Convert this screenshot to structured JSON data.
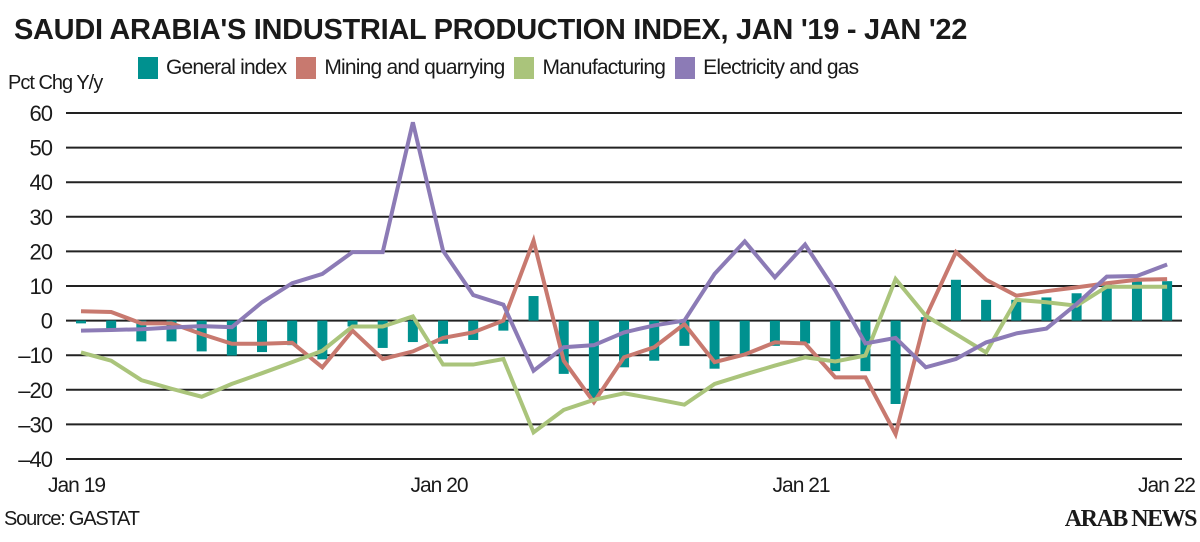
{
  "chart_data": {
    "type": "bar+line",
    "title": "SAUDI ARABIA'S INDUSTRIAL PRODUCTION INDEX, JAN '19 - JAN '22",
    "ylabel": "Pct Chg Y/y",
    "xlabel": "",
    "ylim": [
      -40,
      60
    ],
    "yticks": [
      60,
      50,
      40,
      30,
      20,
      10,
      0,
      -10,
      -20,
      -30,
      -40
    ],
    "ytick_labels": [
      "60",
      "50",
      "40",
      "30",
      "20",
      "10",
      "0",
      "-10",
      "-20",
      "-30",
      "-40"
    ],
    "xtick_labels": [
      {
        "index": 0,
        "label": "Jan 19"
      },
      {
        "index": 12,
        "label": "Jan 20"
      },
      {
        "index": 24,
        "label": "Jan 21"
      },
      {
        "index": 36,
        "label": "Jan 22"
      }
    ],
    "grid": true,
    "legend_placement": "top",
    "series": [
      {
        "name": "General index",
        "kind": "bar",
        "color": "#00918f",
        "values": [
          -0.8,
          -2.3,
          -6.0,
          -6.0,
          -8.9,
          -10.1,
          -9.1,
          -7.1,
          -11.2,
          -1.7,
          -7.9,
          -6.2,
          -6.7,
          -5.6,
          -2.9,
          7.1,
          -15.4,
          -22.4,
          -13.5,
          -11.6,
          -7.3,
          -13.9,
          -10.1,
          -7.3,
          -6.6,
          -14.6,
          -14.6,
          -24.1,
          1.0,
          11.8,
          6.0,
          6.0,
          6.7,
          7.9,
          10.6,
          11.6,
          11.4
        ]
      },
      {
        "name": "Mining and quarrying",
        "kind": "line",
        "color": "#c8796f",
        "values": [
          2.7,
          2.5,
          -0.8,
          -0.8,
          -3.9,
          -6.7,
          -6.7,
          -6.4,
          -13.5,
          -2.9,
          -11.1,
          -8.9,
          -5.0,
          -3.4,
          0,
          23.1,
          -11.6,
          -23.6,
          -10.6,
          -7.7,
          -1.0,
          -12.0,
          -9.8,
          -6.3,
          -6.6,
          -16.4,
          -16.4,
          -32.8,
          1.0,
          19.8,
          11.8,
          7.2,
          8.5,
          9.6,
          10.8,
          11.8,
          12.0
        ]
      },
      {
        "name": "Manufacturing",
        "kind": "line",
        "color": "#aac47b",
        "values": [
          -9.2,
          -11.6,
          -17.2,
          -19.7,
          -22.0,
          -18.3,
          -15.2,
          -12.0,
          -8.7,
          -1.7,
          -1.7,
          1.2,
          -12.7,
          -12.7,
          -11.1,
          -32.3,
          -25.8,
          -22.9,
          -21.0,
          -22.6,
          -24.3,
          -18.3,
          -15.6,
          -13.0,
          -10.6,
          -11.8,
          -10.1,
          12.0,
          1.4,
          -3.9,
          -9.2,
          6.0,
          5.3,
          4.3,
          9.8,
          9.8,
          9.8
        ]
      },
      {
        "name": "Electricity and gas",
        "kind": "line",
        "color": "#8c7bb6",
        "values": [
          -2.9,
          -2.7,
          -2.5,
          -2.0,
          -1.6,
          -1.9,
          5.3,
          10.8,
          13.5,
          19.8,
          19.8,
          57.3,
          20.2,
          7.4,
          4.6,
          -14.5,
          -7.7,
          -7.1,
          -3.4,
          -1.4,
          0,
          13.5,
          22.9,
          12.5,
          22.0,
          8.7,
          -6.6,
          -5.0,
          -13.5,
          -11.1,
          -6.3,
          -3.7,
          -2.3,
          4.8,
          12.7,
          12.9,
          16.2
        ]
      }
    ]
  },
  "source": "Source: GASTAT",
  "logo": "ARAB NEWS"
}
